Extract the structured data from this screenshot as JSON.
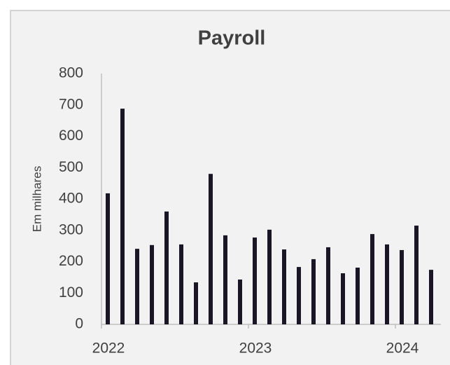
{
  "chart_data": {
    "type": "bar",
    "title": "Payroll",
    "y_label": "Em milhares",
    "categories": [
      "2022",
      null,
      null,
      null,
      null,
      null,
      null,
      null,
      null,
      null,
      "2023",
      null,
      null,
      null,
      null,
      null,
      null,
      null,
      null,
      null,
      "2024",
      null,
      null
    ],
    "values": [
      418,
      688,
      241,
      253,
      360,
      255,
      134,
      480,
      284,
      143,
      277,
      302,
      239,
      183,
      208,
      246,
      163,
      181,
      288,
      255,
      237,
      315,
      174
    ],
    "color": "#1a1625",
    "ylim": [
      0,
      800
    ],
    "yticks": [
      0,
      100,
      200,
      300,
      400,
      500,
      600,
      700,
      800
    ],
    "grid": false
  }
}
